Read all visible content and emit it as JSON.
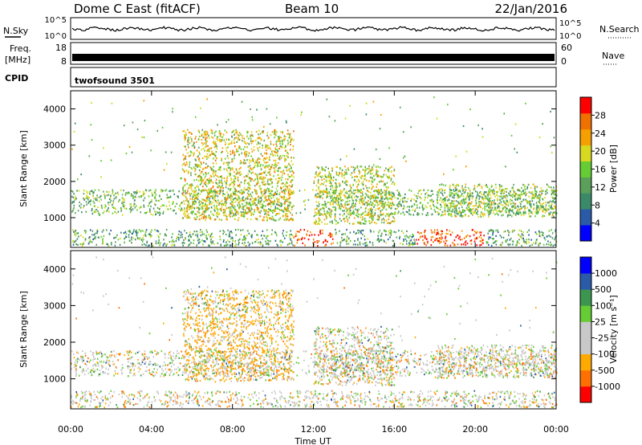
{
  "header": {
    "station": "Dome C East (fitACF)",
    "beam": "Beam 10",
    "date": "22/Jan/2016"
  },
  "top_panels": {
    "nsky_label": "N.Sky",
    "nsearch_label": "N.Search",
    "freq_label": "Freq.",
    "freq_unit": "[MHz]",
    "nave_label": "Nave",
    "cpid_label": "CPID",
    "cpid_value": "twofsound 3501",
    "noise_ticks": [
      "10^5",
      "10^0"
    ],
    "freq_ticks": [
      "18",
      "8"
    ],
    "nave_ticks": [
      "60",
      "0"
    ]
  },
  "colors": {
    "power": [
      "#0000ff",
      "#2a5aa8",
      "#3a8a6a",
      "#5aa05a",
      "#66cc33",
      "#d8d820",
      "#f5a000",
      "#f07000",
      "#ff0000"
    ],
    "velocity": [
      "#ff0000",
      "#ff7000",
      "#ffaa00",
      "#c8c8c8",
      "#c8c8c8",
      "#66cc33",
      "#3c9650",
      "#2a5aa8",
      "#0000ff"
    ]
  },
  "chart_data": [
    {
      "type": "heatmap",
      "title": "Power",
      "xlabel": "",
      "ylabel": "Slant Range [km]",
      "x_ticks": [
        "00:00",
        "04:00",
        "08:00",
        "12:00",
        "16:00",
        "20:00",
        "00:00"
      ],
      "xlim": [
        0,
        24
      ],
      "y_ticks": [
        1000,
        2000,
        3000,
        4000
      ],
      "ylim": [
        180,
        4500
      ],
      "colorbar_label": "Power [dB]",
      "colorbar_ticks": [
        4,
        8,
        12,
        16,
        20,
        24,
        28
      ],
      "colorbar_range": [
        0,
        32
      ]
    },
    {
      "type": "heatmap",
      "title": "Velocity",
      "xlabel": "Time UT",
      "ylabel": "Slant Range [km]",
      "x_ticks": [
        "00:00",
        "04:00",
        "08:00",
        "12:00",
        "16:00",
        "20:00",
        "00:00"
      ],
      "xlim": [
        0,
        24
      ],
      "y_ticks": [
        1000,
        2000,
        3000,
        4000
      ],
      "ylim": [
        180,
        4500
      ],
      "colorbar_label": "Velocity [m s⁻¹]",
      "colorbar_ticks": [
        "1000",
        "500",
        "100",
        "25",
        "-25",
        "-100",
        "-500",
        "-1000"
      ]
    }
  ]
}
